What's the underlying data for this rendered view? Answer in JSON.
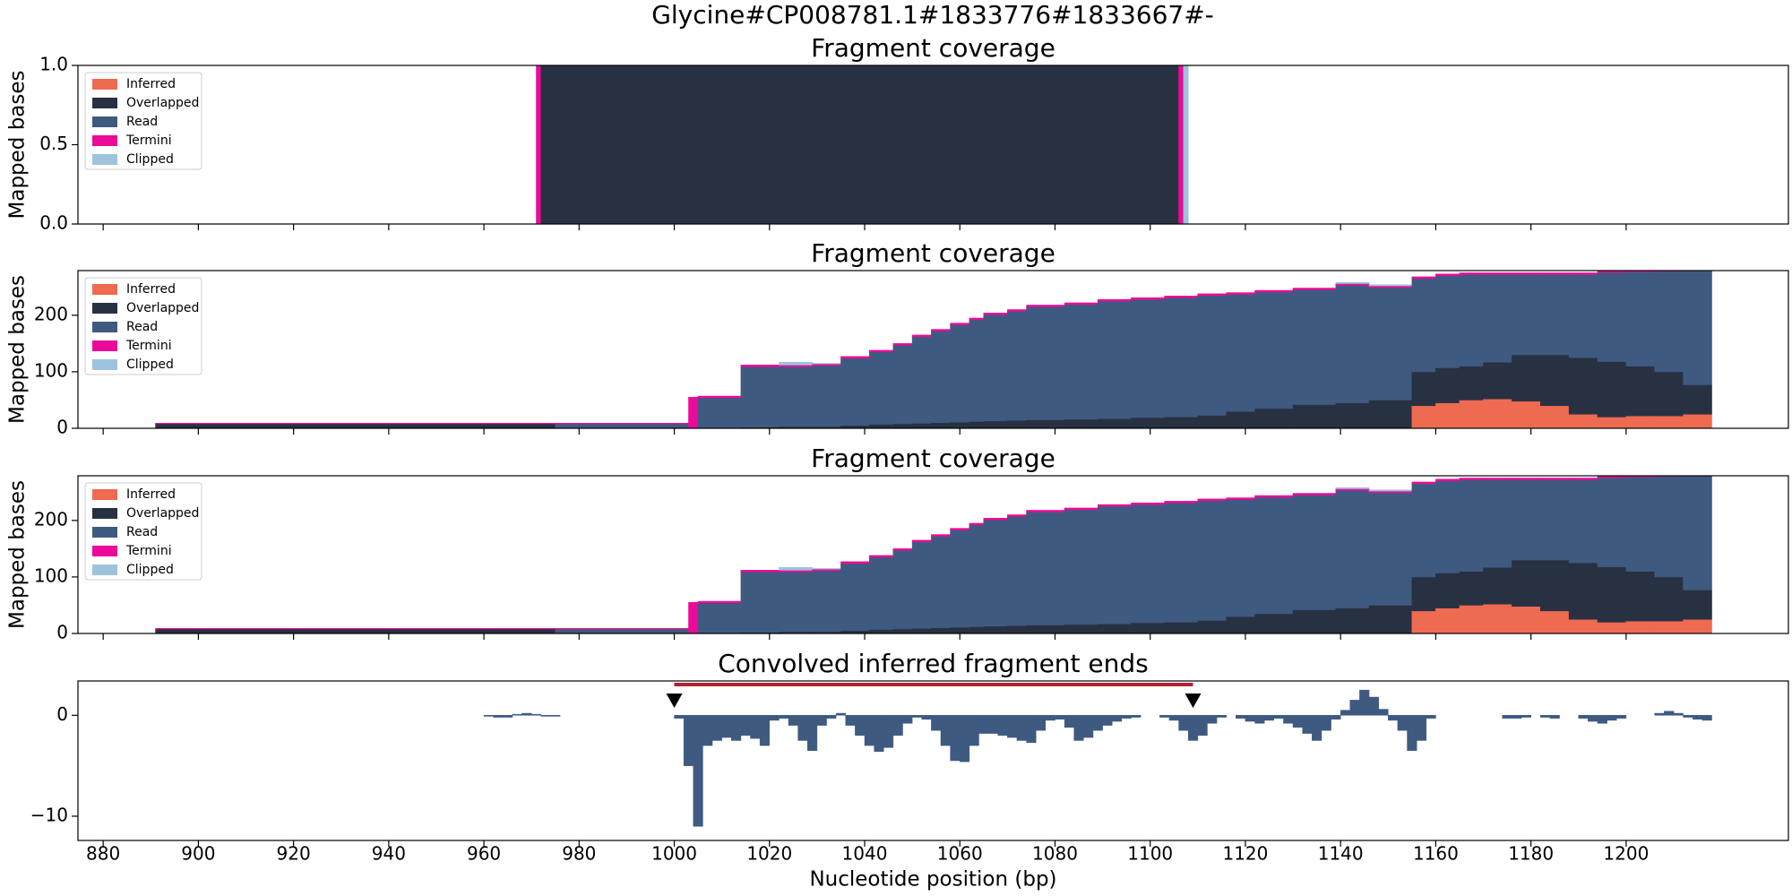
{
  "figure": {
    "title": "Glycine#CP008781.1#1833776#1833667#-"
  },
  "chart_data": [
    {
      "type": "stacked-histogram",
      "title": "Fragment coverage",
      "ylabel": "Mapped bases",
      "xlim": [
        874.7,
        1234.1
      ],
      "xticks": [
        880,
        900,
        920,
        940,
        960,
        980,
        1000,
        1020,
        1040,
        1060,
        1080,
        1100,
        1120,
        1140,
        1160,
        1180,
        1200
      ],
      "ylim": [
        0,
        1
      ],
      "yticks": [
        {
          "value": 0,
          "label": "0.0"
        },
        {
          "value": 0.5,
          "label": "0.5"
        },
        {
          "value": 1,
          "label": "1.0"
        }
      ],
      "legend": "upper left",
      "bins": [
        971,
        972,
        1106,
        1107,
        1108
      ],
      "series": [
        {
          "name": "Inferred",
          "color": "#ee6a50",
          "values": [
            0,
            0,
            0,
            0
          ]
        },
        {
          "name": "Overlapped",
          "color": "#283142",
          "values": [
            0,
            1,
            0,
            0
          ]
        },
        {
          "name": "Read",
          "color": "#3f5a80",
          "values": [
            0,
            0,
            0,
            0
          ]
        },
        {
          "name": "Termini",
          "color": "#ec0a9a",
          "values": [
            1,
            0,
            1,
            0
          ]
        },
        {
          "name": "Clipped",
          "color": "#9ec3dd",
          "values": [
            0,
            0,
            0,
            1
          ]
        }
      ]
    },
    {
      "type": "stacked-histogram",
      "title": "Fragment coverage",
      "ylabel": "Mapped bases",
      "xlim": [
        874.7,
        1234.1
      ],
      "xticks": [
        880,
        900,
        920,
        940,
        960,
        980,
        1000,
        1020,
        1040,
        1060,
        1080,
        1100,
        1120,
        1140,
        1160,
        1180,
        1200
      ],
      "ylim": [
        0,
        279
      ],
      "yticks": [
        0,
        100,
        200
      ],
      "legend": "upper left",
      "bins": [
        891,
        975,
        1003,
        1005,
        1014,
        1022,
        1029,
        1035,
        1041,
        1046,
        1050,
        1054,
        1058,
        1062,
        1065,
        1070,
        1074,
        1082,
        1089,
        1096,
        1103,
        1110,
        1116,
        1122,
        1130,
        1139,
        1146,
        1155,
        1160,
        1165,
        1170,
        1176,
        1182,
        1188,
        1194,
        1200,
        1206,
        1212,
        1218
      ],
      "series": [
        {
          "name": "Inferred",
          "color": "#ee6a50",
          "values": [
            0,
            0,
            0,
            0,
            0,
            0,
            0,
            0,
            0,
            0,
            0,
            0,
            0,
            0,
            0,
            0,
            0,
            0,
            0,
            0,
            0,
            0,
            0,
            0,
            0,
            0,
            0,
            40,
            45,
            50,
            52,
            48,
            40,
            25,
            20,
            22,
            22,
            25
          ]
        },
        {
          "name": "Overlapped",
          "color": "#283142",
          "values": [
            8,
            0,
            0,
            1,
            2,
            3,
            3,
            5,
            7,
            8,
            9,
            10,
            11,
            12,
            13,
            14,
            15,
            16,
            17,
            19,
            20,
            23,
            30,
            35,
            42,
            45,
            50,
            60,
            62,
            60,
            65,
            82,
            90,
            100,
            98,
            88,
            78,
            52
          ]
        },
        {
          "name": "Read",
          "color": "#3f5a80",
          "values": [
            0,
            8,
            0,
            53,
            107,
            106,
            108,
            119,
            128,
            139,
            153,
            162,
            172,
            180,
            188,
            193,
            200,
            203,
            208,
            209,
            211,
            212,
            207,
            206,
            203,
            208,
            199,
            165,
            163,
            162,
            155,
            142,
            142,
            147,
            158,
            167,
            178,
            201
          ]
        },
        {
          "name": "Termini",
          "color": "#ec0a9a",
          "values": [
            1,
            1,
            55,
            3,
            3,
            3,
            3,
            3,
            3,
            3,
            3,
            3,
            3,
            3,
            3,
            3,
            3,
            3,
            3,
            3,
            3,
            3,
            3,
            3,
            3,
            3,
            3,
            3,
            3,
            3,
            3,
            3,
            3,
            3,
            2,
            1,
            1,
            0
          ]
        },
        {
          "name": "Clipped",
          "color": "#9ec3dd",
          "values": [
            0,
            0,
            0,
            0,
            0,
            5,
            1,
            0,
            0,
            0,
            0,
            0,
            0,
            0,
            0,
            0,
            0,
            0,
            0,
            0,
            0,
            0,
            0,
            0,
            0,
            2,
            2,
            0,
            0,
            0,
            0,
            0,
            0,
            0,
            0,
            0,
            0,
            0
          ]
        }
      ]
    },
    {
      "type": "stacked-histogram",
      "title": "Fragment coverage",
      "ylabel": "Mapped bases",
      "xlim": [
        874.7,
        1234.1
      ],
      "xticks": [
        880,
        900,
        920,
        940,
        960,
        980,
        1000,
        1020,
        1040,
        1060,
        1080,
        1100,
        1120,
        1140,
        1160,
        1180,
        1200
      ],
      "ylim": [
        0,
        279
      ],
      "yticks": [
        0,
        100,
        200
      ],
      "legend": "upper left",
      "bins": [
        891,
        975,
        1003,
        1005,
        1014,
        1022,
        1029,
        1035,
        1041,
        1046,
        1050,
        1054,
        1058,
        1062,
        1065,
        1070,
        1074,
        1082,
        1089,
        1096,
        1103,
        1110,
        1116,
        1122,
        1130,
        1139,
        1146,
        1155,
        1160,
        1165,
        1170,
        1176,
        1182,
        1188,
        1194,
        1200,
        1206,
        1212,
        1218
      ],
      "series": [
        {
          "name": "Inferred",
          "color": "#ee6a50",
          "values": [
            0,
            0,
            0,
            0,
            0,
            0,
            0,
            0,
            0,
            0,
            0,
            0,
            0,
            0,
            0,
            0,
            0,
            0,
            0,
            0,
            0,
            0,
            0,
            0,
            0,
            0,
            0,
            40,
            45,
            50,
            52,
            48,
            40,
            25,
            20,
            22,
            22,
            25
          ]
        },
        {
          "name": "Overlapped",
          "color": "#283142",
          "values": [
            8,
            0,
            0,
            1,
            2,
            3,
            3,
            5,
            7,
            8,
            9,
            10,
            11,
            12,
            13,
            14,
            15,
            16,
            17,
            19,
            20,
            23,
            30,
            35,
            42,
            45,
            50,
            60,
            62,
            60,
            65,
            82,
            90,
            100,
            98,
            88,
            78,
            52
          ]
        },
        {
          "name": "Read",
          "color": "#3f5a80",
          "values": [
            0,
            8,
            0,
            53,
            107,
            106,
            108,
            119,
            128,
            139,
            153,
            162,
            172,
            180,
            188,
            193,
            200,
            203,
            208,
            209,
            211,
            212,
            207,
            206,
            203,
            208,
            199,
            165,
            163,
            162,
            155,
            142,
            142,
            147,
            158,
            167,
            178,
            201
          ]
        },
        {
          "name": "Termini",
          "color": "#ec0a9a",
          "values": [
            1,
            1,
            55,
            3,
            3,
            3,
            3,
            3,
            3,
            3,
            3,
            3,
            3,
            3,
            3,
            3,
            3,
            3,
            3,
            3,
            3,
            3,
            3,
            3,
            3,
            3,
            3,
            3,
            3,
            3,
            3,
            3,
            3,
            3,
            2,
            1,
            1,
            0
          ]
        },
        {
          "name": "Clipped",
          "color": "#9ec3dd",
          "values": [
            0,
            0,
            0,
            0,
            0,
            5,
            1,
            0,
            0,
            0,
            0,
            0,
            0,
            0,
            0,
            0,
            0,
            0,
            0,
            0,
            0,
            0,
            0,
            0,
            0,
            2,
            2,
            0,
            0,
            0,
            0,
            0,
            0,
            0,
            0,
            0,
            0,
            0
          ]
        }
      ]
    },
    {
      "type": "bar",
      "title": "Convolved inferred fragment ends",
      "xlabel": "Nucleotide position (bp)",
      "xlim": [
        874.7,
        1234.1
      ],
      "xticks": [
        880,
        900,
        920,
        940,
        960,
        980,
        1000,
        1020,
        1040,
        1060,
        1080,
        1100,
        1120,
        1140,
        1160,
        1180,
        1200
      ],
      "ylim": [
        -12.4,
        3.4
      ],
      "yticks": [
        0,
        {
          "value": -10,
          "label": "−10"
        }
      ],
      "color": "#3f5a80",
      "interval": [
        1000,
        1109
      ],
      "interval_color": "#b22234",
      "x": [
        960,
        962,
        964,
        966,
        968,
        970,
        972,
        974,
        976,
        978,
        980,
        982,
        984,
        986,
        988,
        990,
        992,
        994,
        996,
        998,
        1000,
        1002,
        1004,
        1006,
        1008,
        1010,
        1012,
        1014,
        1016,
        1018,
        1020,
        1022,
        1024,
        1026,
        1028,
        1030,
        1032,
        1034,
        1036,
        1038,
        1040,
        1042,
        1044,
        1046,
        1048,
        1050,
        1052,
        1054,
        1056,
        1058,
        1060,
        1062,
        1064,
        1066,
        1068,
        1070,
        1072,
        1074,
        1076,
        1078,
        1080,
        1082,
        1084,
        1086,
        1088,
        1090,
        1092,
        1094,
        1096,
        1098,
        1100,
        1102,
        1104,
        1106,
        1108,
        1110,
        1112,
        1114,
        1116,
        1118,
        1120,
        1122,
        1124,
        1126,
        1128,
        1130,
        1132,
        1134,
        1136,
        1138,
        1140,
        1142,
        1144,
        1146,
        1148,
        1150,
        1152,
        1154,
        1156,
        1158,
        1160,
        1162,
        1164,
        1166,
        1168,
        1170,
        1172,
        1174,
        1176,
        1178,
        1180,
        1182,
        1184,
        1186,
        1188,
        1190,
        1192,
        1194,
        1196,
        1198,
        1200,
        1202,
        1204,
        1206,
        1208,
        1210,
        1212,
        1214,
        1216
      ],
      "values": [
        -0.1,
        -0.2,
        -0.2,
        0.1,
        0.2,
        0.1,
        -0.1,
        -0.1,
        null,
        null,
        null,
        null,
        null,
        null,
        null,
        null,
        null,
        null,
        null,
        null,
        -0.3,
        -5,
        -11,
        -3,
        -2.5,
        -2.2,
        -2.5,
        -2,
        -2.3,
        -3,
        -0.5,
        -0.3,
        -1,
        -2.5,
        -3.5,
        -1,
        -0.3,
        0.2,
        -1,
        -2,
        -3,
        -3.6,
        -3.2,
        -2,
        -0.8,
        -0.2,
        -0.4,
        -1.5,
        -3,
        -4.5,
        -4.6,
        -3,
        -1.8,
        -1.8,
        -2,
        -2.2,
        -2.5,
        -2.7,
        -1.5,
        -0.5,
        -0.4,
        -1.2,
        -2.5,
        -2.2,
        -1.5,
        -1,
        -0.6,
        -0.3,
        -0.2,
        null,
        null,
        -0.2,
        -0.5,
        -1.5,
        -2.5,
        -2,
        -0.8,
        -0.2,
        null,
        -0.3,
        -0.6,
        -0.8,
        -0.5,
        -0.3,
        -0.8,
        -1.2,
        -1.8,
        -2.5,
        -1.5,
        -0.4,
        0.5,
        1.5,
        2.5,
        1.8,
        0.6,
        -0.5,
        -1.5,
        -3.5,
        -2.5,
        -0.3,
        null,
        null,
        null,
        null,
        null,
        null,
        null,
        -0.3,
        -0.3,
        -0.2,
        null,
        -0.2,
        -0.3,
        null,
        null,
        -0.3,
        -0.6,
        -0.8,
        -0.5,
        -0.3,
        null,
        null,
        null,
        0.2,
        0.4,
        0.2,
        -0.2,
        -0.4,
        -0.5
      ]
    }
  ]
}
